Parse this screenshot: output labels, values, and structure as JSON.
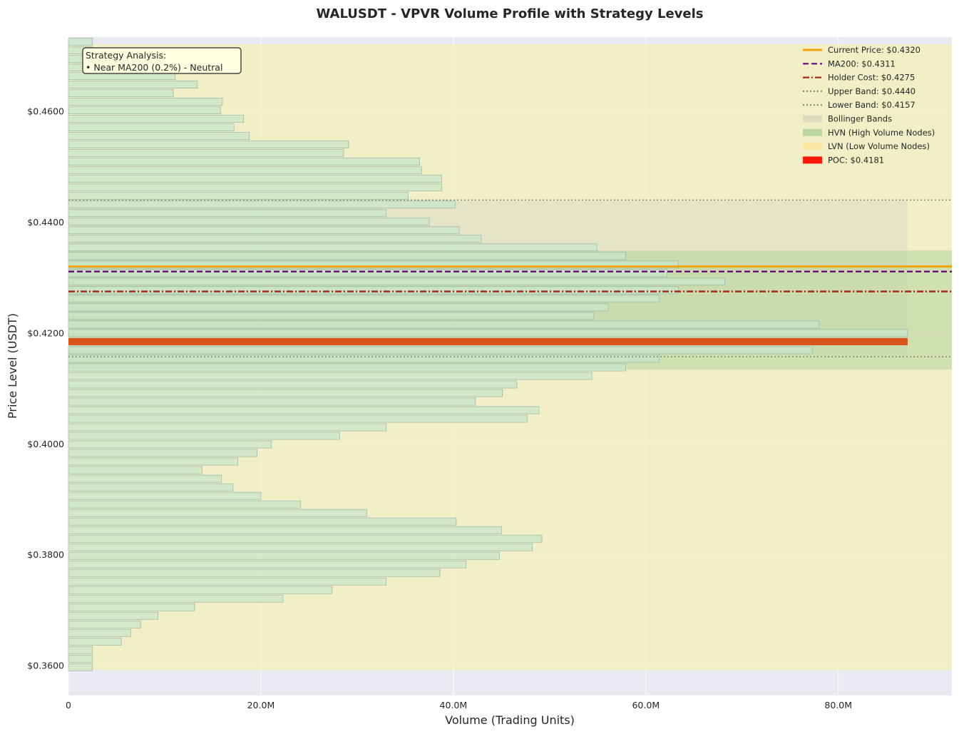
{
  "chart_data": {
    "type": "bar",
    "orientation": "horizontal",
    "title": "WALUSDT - VPVR Volume Profile with Strategy Levels",
    "xlabel": "Volume (Trading Units)",
    "ylabel": "Price Level (USDT)",
    "xlim": [
      0,
      91800000
    ],
    "ylim": [
      0.3546,
      0.4734
    ],
    "grid": true,
    "legend_position": "top-right",
    "x_ticks": [
      {
        "value": 0,
        "label": "0"
      },
      {
        "value": 20000000,
        "label": "20.0M"
      },
      {
        "value": 40000000,
        "label": "40.0M"
      },
      {
        "value": 60000000,
        "label": "60.0M"
      },
      {
        "value": 80000000,
        "label": "80.0M"
      }
    ],
    "y_ticks": [
      {
        "value": 0.36,
        "label": "$0.3600"
      },
      {
        "value": 0.38,
        "label": "$0.3800"
      },
      {
        "value": 0.4,
        "label": "$0.4000"
      },
      {
        "value": 0.42,
        "label": "$0.4200"
      },
      {
        "value": 0.44,
        "label": "$0.4400"
      },
      {
        "value": 0.46,
        "label": "$0.4600"
      }
    ],
    "bin_start": 0.3597,
    "bin_width": 0.001546,
    "volumes": [
      2500000.0,
      2500000.0,
      2500000.0,
      5500000.0,
      6500000.0,
      7500000.0,
      9300000.0,
      13100000.0,
      22300000.0,
      27400000.0,
      33000000.0,
      38600000.0,
      41300000.0,
      44800000.0,
      48200000.0,
      49200000.0,
      45000000.0,
      40300000.0,
      31000000.0,
      24100000.0,
      20000000.0,
      17100000.0,
      15900000.0,
      13900000.0,
      17600000.0,
      19600000.0,
      21100000.0,
      28200000.0,
      33000000.0,
      47700000.0,
      48900000.0,
      42300000.0,
      45100000.0,
      46600000.0,
      54400000.0,
      57900000.0,
      61400000.0,
      77300000.0,
      87200000.0,
      87200000.0,
      78000000.0,
      54600000.0,
      56100000.0,
      61400000.0,
      63400000.0,
      68200000.0,
      62200000.0,
      63400000.0,
      57900000.0,
      54900000.0,
      42900000.0,
      40600000.0,
      37500000.0,
      33000000.0,
      40200000.0,
      35300000.0,
      38800000.0,
      38800000.0,
      36700000.0,
      36500000.0,
      28600000.0,
      29100000.0,
      18800000.0,
      17200000.0,
      18200000.0,
      15800000.0,
      16000000.0,
      10900000.0,
      13400000.0,
      11100000.0,
      11100000.0,
      2500000.0,
      2500000.0,
      2500000.0
    ],
    "poc": 0.4181,
    "bollinger": {
      "upper": 0.444,
      "lower": 0.4157
    },
    "hvn_zone": [
      0.4134,
      0.4349
    ],
    "lvn_zone": [
      0.3592,
      0.4721
    ],
    "levels": [
      {
        "name": "Current Price",
        "value": 0.432,
        "color": "#f0a30a",
        "style": "solid"
      },
      {
        "name": "MA200",
        "value": 0.4311,
        "color": "#6a0a7a",
        "style": "dashed"
      },
      {
        "name": "Holder Cost",
        "value": 0.4275,
        "color": "#a52a1a",
        "style": "dashdot"
      },
      {
        "name": "Upper Band",
        "value": 0.444,
        "color": "#8a8a7a",
        "style": "dotted"
      },
      {
        "name": "Lower Band",
        "value": 0.4157,
        "color": "#8a8a7a",
        "style": "dotted"
      }
    ],
    "legend": [
      {
        "label": "Current Price: $0.4320",
        "kind": "line",
        "color": "#f0a30a",
        "dash": ""
      },
      {
        "label": "MA200: $0.4311",
        "kind": "line",
        "color": "#6a0a7a",
        "dash": "8,4"
      },
      {
        "label": "Holder Cost: $0.4275",
        "kind": "line",
        "color": "#a52a1a",
        "dash": "9,3,2,3"
      },
      {
        "label": "Upper Band: $0.4440",
        "kind": "line",
        "color": "#8a8a7a",
        "dash": "2,3"
      },
      {
        "label": "Lower Band: $0.4157",
        "kind": "line",
        "color": "#8a8a7a",
        "dash": "2,3"
      },
      {
        "label": "Bollinger Bands",
        "kind": "patch",
        "color": "#dcdcc0"
      },
      {
        "label": "HVN (High Volume Nodes)",
        "kind": "patch",
        "color": "#bcd6a0"
      },
      {
        "label": "LVN (Low Volume Nodes)",
        "kind": "patch",
        "color": "#fbe7a1"
      },
      {
        "label": "POC: $0.4181",
        "kind": "patch",
        "color": "#ff1a0a"
      }
    ],
    "annotation": {
      "line1": "Strategy Analysis:",
      "line2": "• Near MA200 (0.2%) - Neutral"
    },
    "colors": {
      "background": "#eaeaf2",
      "bar_fill": "#c8e6c9",
      "bar_edge": "#9fbca9",
      "poc_bar": "#d9541a",
      "lvn_fill": "#f3f0c0",
      "hvn_fill": "#b4d49a",
      "bollinger_fill": "#dcdcc4",
      "annotation_bg": "#ffffe0"
    }
  }
}
